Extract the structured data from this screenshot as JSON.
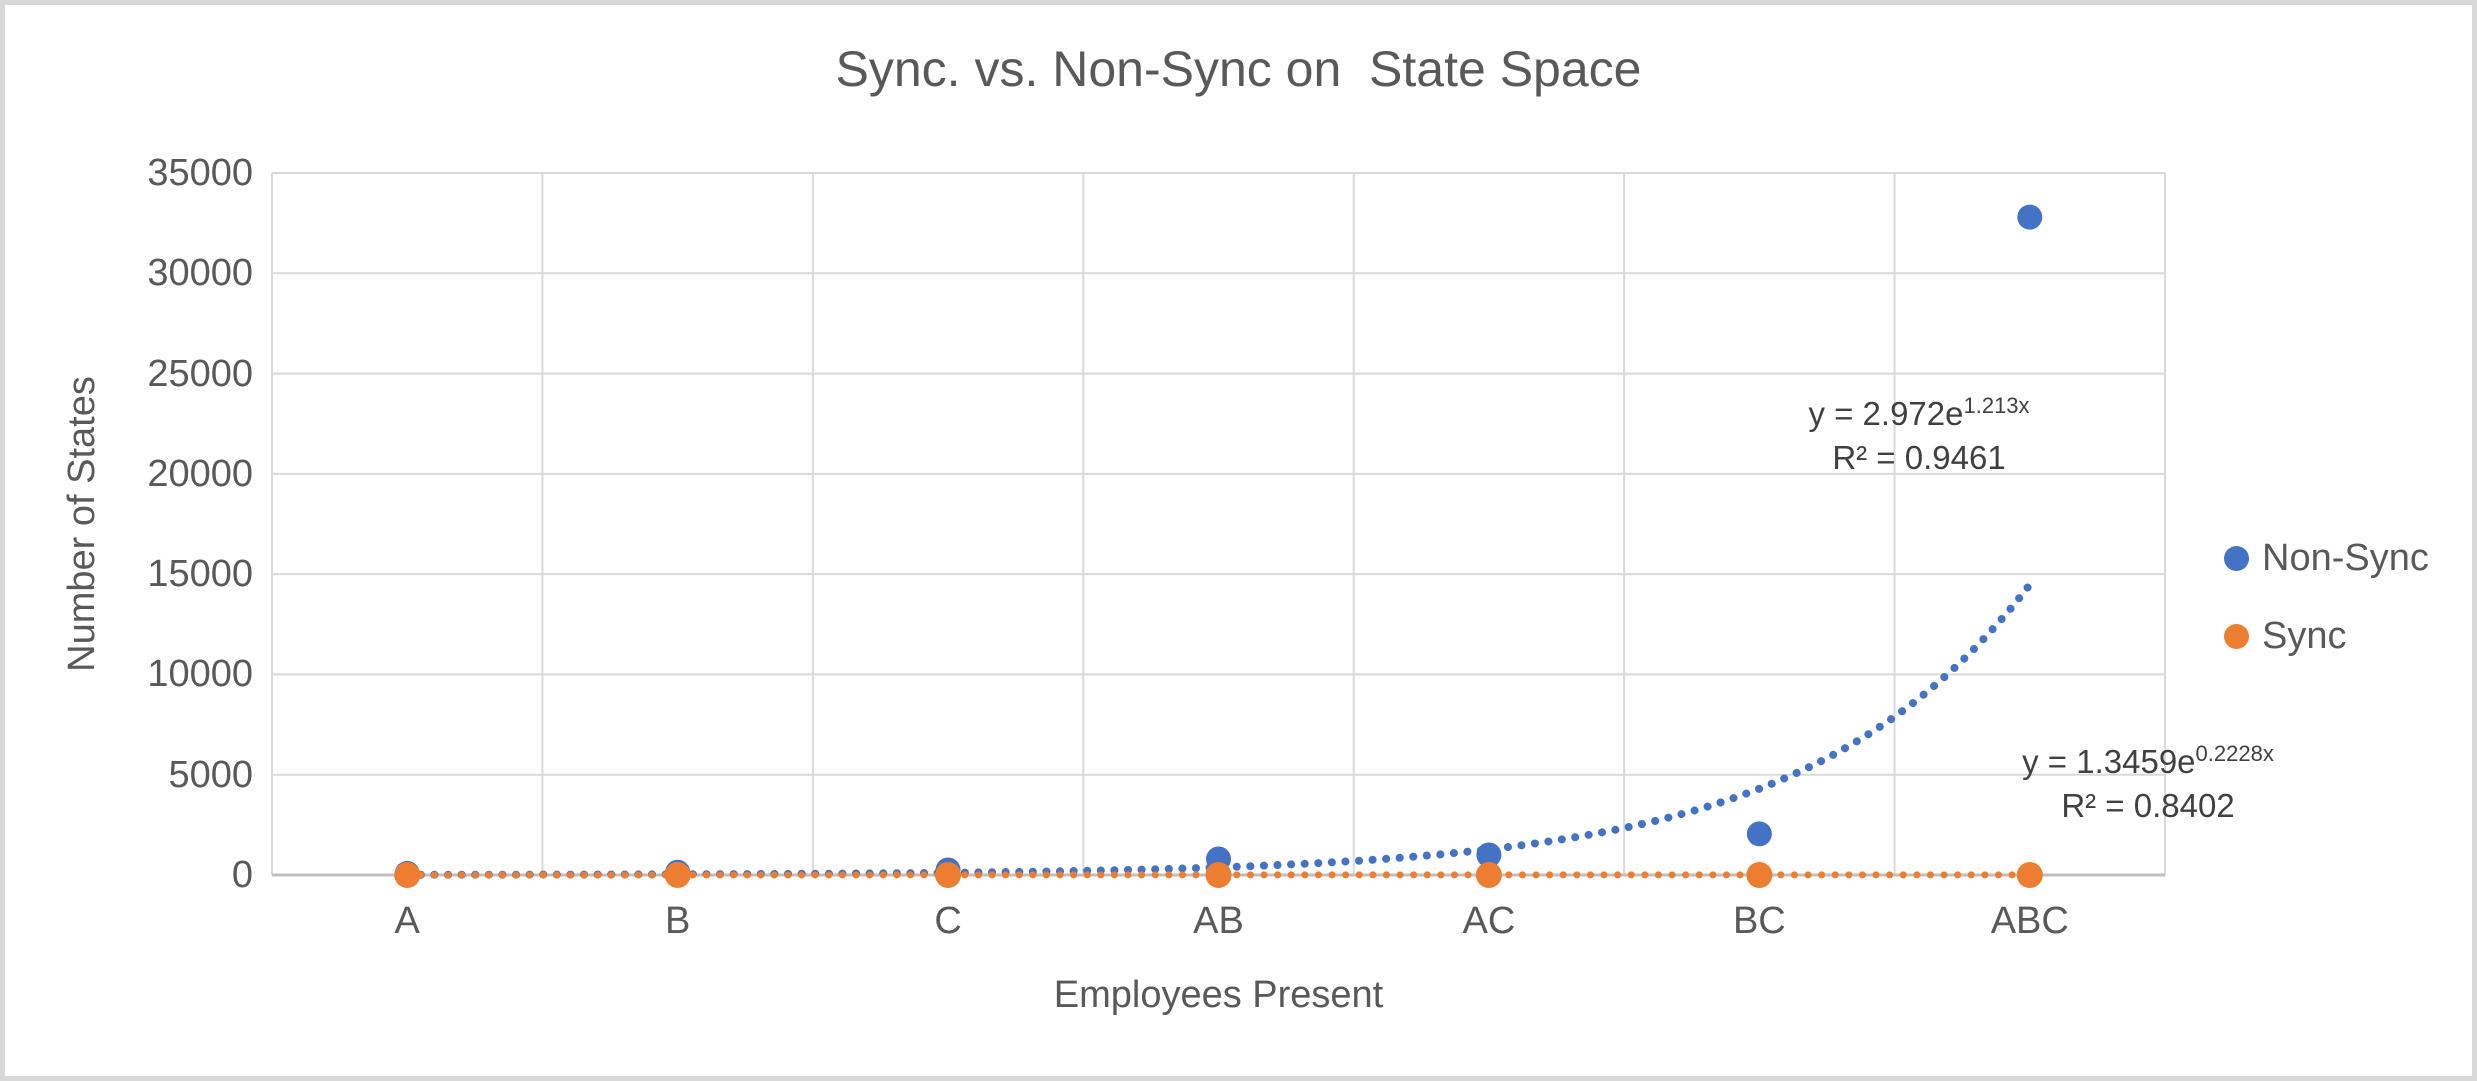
{
  "window": {
    "background": "#ffffff",
    "border_color": "#d8d8d8"
  },
  "chart_data": {
    "type": "scatter",
    "title": "Sync. vs. Non-Sync on  State Space",
    "xlabel": "Employees Present",
    "ylabel": "Number of States",
    "categories": [
      "A",
      "B",
      "C",
      "AB",
      "AC",
      "BC",
      "ABC"
    ],
    "x_numeric": [
      1,
      2,
      3,
      4,
      5,
      6,
      7
    ],
    "ylim": [
      0,
      35000
    ],
    "y_ticks": [
      0,
      5000,
      10000,
      15000,
      20000,
      25000,
      30000,
      35000
    ],
    "gridlines": {
      "horizontal": true,
      "vertical": true,
      "color": "#d9d9d9"
    },
    "axis_line_color": "#bfbfbf",
    "legend_position": "right",
    "series": [
      {
        "name": "Non-Sync",
        "color": "#4472c4",
        "marker": "circle",
        "values": [
          80,
          140,
          250,
          800,
          1000,
          2050,
          32800
        ],
        "trendline": {
          "type": "exponential",
          "coef_a": 2.972,
          "coef_b": 1.213,
          "style": "dotted",
          "equation_base": "y = 2.972e",
          "equation_exponent": "1.213x",
          "r_squared_label": "R² = 0.9461"
        }
      },
      {
        "name": "Sync",
        "color": "#ed7d31",
        "marker": "circle",
        "values": [
          0,
          0,
          0,
          0,
          0,
          0,
          0
        ],
        "trendline": {
          "type": "exponential",
          "coef_a": 1.3459,
          "coef_b": 0.2228,
          "style": "dotted",
          "equation_base": "y = 1.3459e",
          "equation_exponent": "0.2228x",
          "r_squared_label": "R² = 0.8402"
        }
      }
    ]
  }
}
